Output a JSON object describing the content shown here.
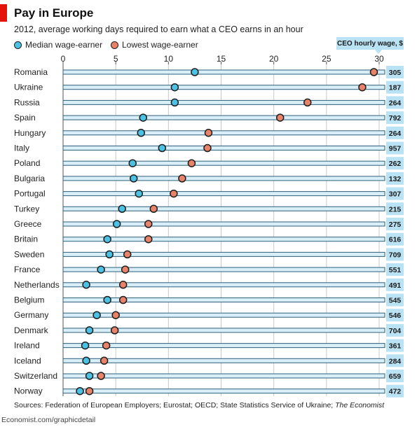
{
  "header": {
    "title": "Pay in Europe",
    "subtitle": "2012, average working days required to earn what a CEO earns in an hour"
  },
  "legend": {
    "median_label": "Median wage-earner",
    "lowest_label": "Lowest wage-earner"
  },
  "ceo_column": {
    "label": "CEO hourly wage, $"
  },
  "colors": {
    "median": "#4bc1e3",
    "lowest": "#e8836a",
    "bar": "#d8eef8",
    "bar_border": "#2f5f7a",
    "ceo_box": "#b9e2f4",
    "brand_red": "#e3120b"
  },
  "footer": {
    "source_prefix": "Sources: Federation of European Employers; Eurostat; OECD; State Statistics Service of Ukraine; ",
    "source_publication": "The Economist",
    "site": "Economist.com/graphicdetail"
  },
  "chart_data": {
    "type": "scatter",
    "title": "Pay in Europe",
    "subtitle": "2012, average working days required to earn what a CEO earns in an hour",
    "xlim": [
      0,
      30
    ],
    "x_ticks": [
      0,
      5,
      10,
      15,
      20,
      25,
      30
    ],
    "legend_position": "top-left",
    "categories": [
      "Romania",
      "Ukraine",
      "Russia",
      "Spain",
      "Hungary",
      "Italy",
      "Poland",
      "Bulgaria",
      "Portugal",
      "Turkey",
      "Greece",
      "Britain",
      "Sweden",
      "France",
      "Netherlands",
      "Belgium",
      "Germany",
      "Denmark",
      "Ireland",
      "Iceland",
      "Switzerland",
      "Norway"
    ],
    "series": [
      {
        "name": "Median wage-earner",
        "values": [
          12.5,
          10.6,
          10.6,
          7.6,
          7.4,
          9.4,
          6.6,
          6.7,
          7.2,
          5.6,
          5.1,
          4.2,
          4.4,
          3.6,
          2.2,
          4.2,
          3.2,
          2.5,
          2.1,
          2.2,
          2.5,
          1.6
        ]
      },
      {
        "name": "Lowest wage-earner",
        "values": [
          29.5,
          28.4,
          23.2,
          20.6,
          13.8,
          13.7,
          12.2,
          11.3,
          10.5,
          8.6,
          8.1,
          8.1,
          6.1,
          5.9,
          5.7,
          5.7,
          5.0,
          4.9,
          4.1,
          3.9,
          3.6,
          2.5
        ]
      }
    ],
    "ceo_hourly_wage": [
      305,
      187,
      264,
      792,
      264,
      957,
      262,
      132,
      307,
      215,
      275,
      616,
      709,
      551,
      491,
      545,
      546,
      704,
      361,
      284,
      659,
      472
    ]
  }
}
